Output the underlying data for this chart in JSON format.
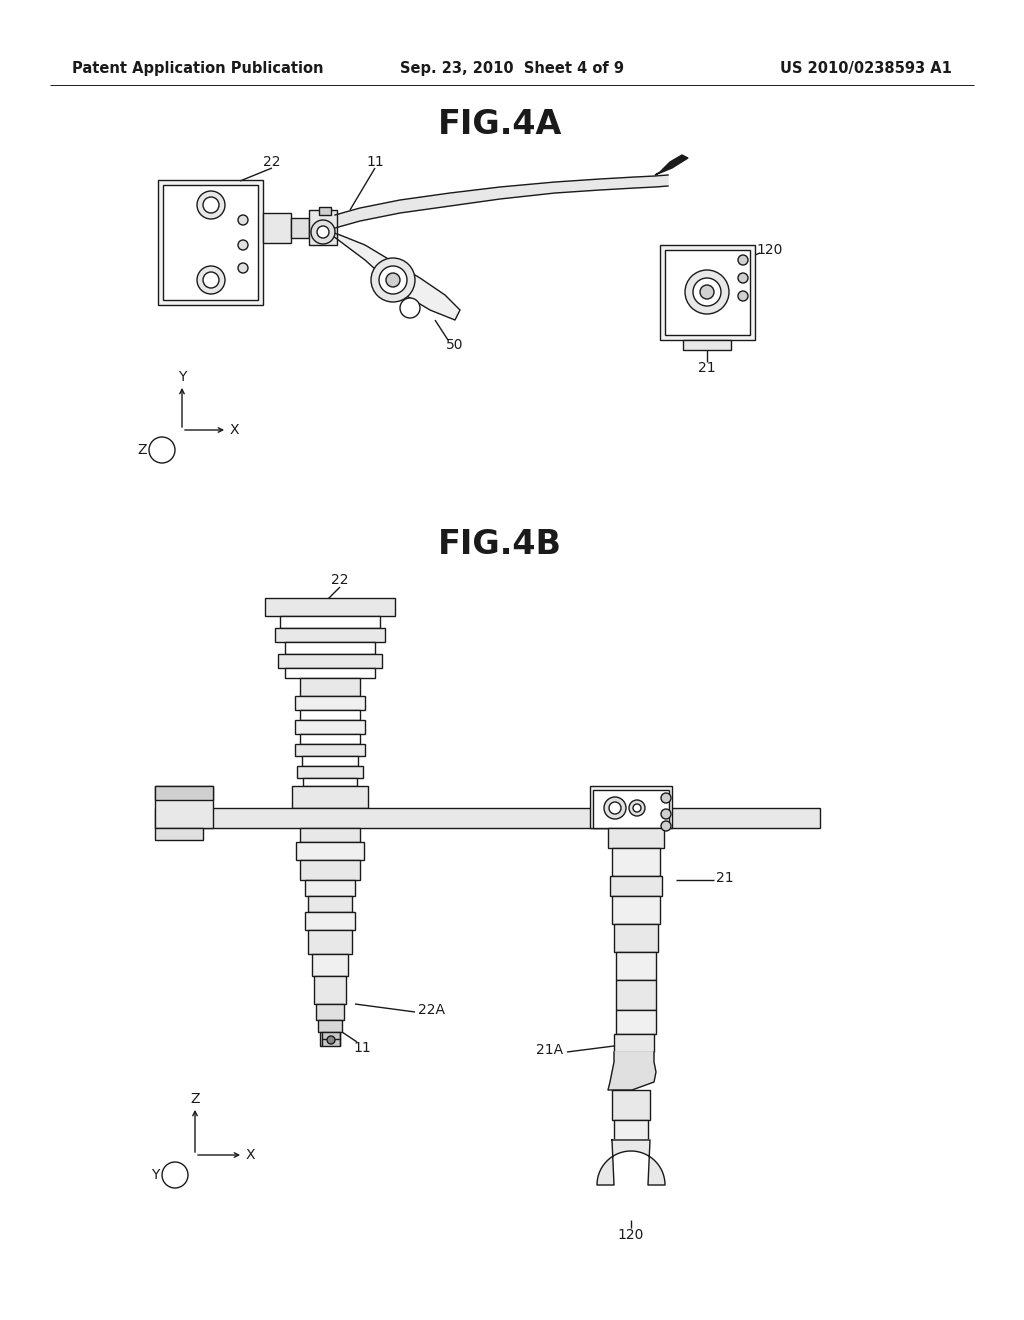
{
  "background_color": "#ffffff",
  "header_left": "Patent Application Publication",
  "header_center": "Sep. 23, 2010  Sheet 4 of 9",
  "header_right": "US 2010/0238593 A1",
  "header_fontsize": 10.5,
  "fig4a_title": "FIG.4A",
  "fig4b_title": "FIG.4B",
  "fig_title_fontsize": 24,
  "label_fontsize": 10,
  "line_color": "#1a1a1a",
  "lw": 1.0
}
